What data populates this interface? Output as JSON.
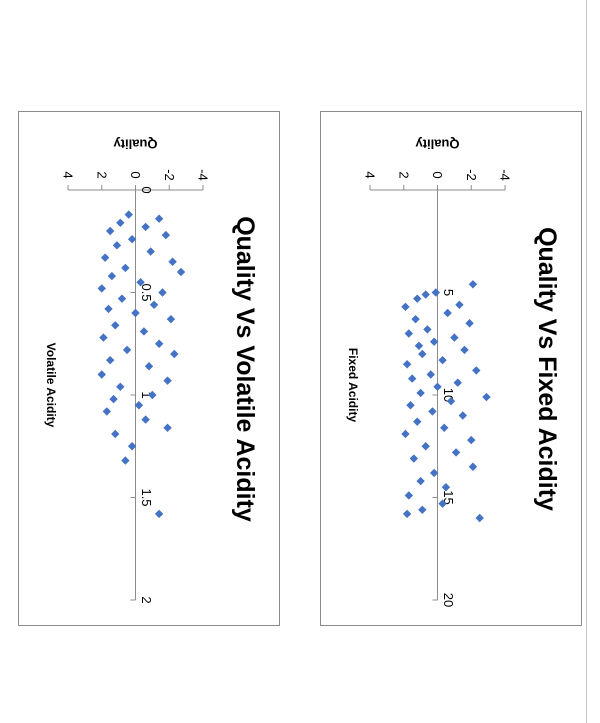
{
  "colors": {
    "marker": "#4472C4",
    "axis": "#8c8c8c",
    "text": "#000000"
  },
  "chart_data": [
    {
      "type": "scatter",
      "title": "Quality Vs Fixed Acidity",
      "xlabel": "Fixed Acidity",
      "ylabel": "Quality",
      "xlim": [
        0,
        20
      ],
      "ylim": [
        -4,
        4
      ],
      "xticks": [
        "5",
        "10",
        "15",
        "20"
      ],
      "yticks": [
        "-4",
        "-2",
        "0",
        "2",
        "4"
      ],
      "orientation": "rotated 90° clockwise",
      "grid": false,
      "legend": "none",
      "points": [
        {
          "x": 4.6,
          "y": -2.1
        },
        {
          "x": 5.0,
          "y": 0.1
        },
        {
          "x": 5.1,
          "y": 0.7
        },
        {
          "x": 5.3,
          "y": 1.2
        },
        {
          "x": 5.6,
          "y": -1.3
        },
        {
          "x": 5.7,
          "y": 1.9
        },
        {
          "x": 6.0,
          "y": -0.6
        },
        {
          "x": 6.3,
          "y": 1.3
        },
        {
          "x": 6.5,
          "y": -1.9
        },
        {
          "x": 6.8,
          "y": 0.6
        },
        {
          "x": 7.0,
          "y": 1.7
        },
        {
          "x": 7.2,
          "y": -1.0
        },
        {
          "x": 7.4,
          "y": 0.2
        },
        {
          "x": 7.6,
          "y": 1.1
        },
        {
          "x": 7.8,
          "y": -1.6
        },
        {
          "x": 8.0,
          "y": 0.9
        },
        {
          "x": 8.3,
          "y": -0.3
        },
        {
          "x": 8.5,
          "y": 1.8
        },
        {
          "x": 8.8,
          "y": -2.3
        },
        {
          "x": 9.0,
          "y": 0.4
        },
        {
          "x": 9.2,
          "y": 1.5
        },
        {
          "x": 9.4,
          "y": -1.2
        },
        {
          "x": 9.6,
          "y": 0.0
        },
        {
          "x": 9.9,
          "y": 1.0
        },
        {
          "x": 10.1,
          "y": -2.9
        },
        {
          "x": 10.3,
          "y": -0.8
        },
        {
          "x": 10.5,
          "y": 1.6
        },
        {
          "x": 10.8,
          "y": 0.3
        },
        {
          "x": 11.0,
          "y": -1.5
        },
        {
          "x": 11.3,
          "y": 1.2
        },
        {
          "x": 11.6,
          "y": -0.4
        },
        {
          "x": 11.9,
          "y": 1.9
        },
        {
          "x": 12.2,
          "y": -2.0
        },
        {
          "x": 12.5,
          "y": 0.7
        },
        {
          "x": 12.8,
          "y": -1.1
        },
        {
          "x": 13.1,
          "y": 1.4
        },
        {
          "x": 13.5,
          "y": -2.1
        },
        {
          "x": 13.8,
          "y": 0.2
        },
        {
          "x": 14.2,
          "y": 1.0
        },
        {
          "x": 14.5,
          "y": -0.5
        },
        {
          "x": 14.9,
          "y": 1.7
        },
        {
          "x": 15.3,
          "y": -0.3
        },
        {
          "x": 15.6,
          "y": 0.9
        },
        {
          "x": 15.8,
          "y": 1.8
        },
        {
          "x": 16.0,
          "y": -2.5
        }
      ]
    },
    {
      "type": "scatter",
      "title": "Quality Vs Volatile Acidity",
      "xlabel": "Volatile Acidity",
      "ylabel": "Quality",
      "xlim": [
        0,
        2
      ],
      "ylim": [
        -4,
        4
      ],
      "xticks": [
        "0",
        "0.5",
        "1",
        "1.5",
        "2"
      ],
      "yticks": [
        "-4",
        "-2",
        "0",
        "2",
        "4"
      ],
      "orientation": "rotated 90° clockwise",
      "grid": false,
      "legend": "none",
      "points": [
        {
          "x": 0.12,
          "y": 0.4
        },
        {
          "x": 0.14,
          "y": -1.4
        },
        {
          "x": 0.16,
          "y": 0.9
        },
        {
          "x": 0.18,
          "y": -0.6
        },
        {
          "x": 0.2,
          "y": 1.5
        },
        {
          "x": 0.22,
          "y": -1.8
        },
        {
          "x": 0.24,
          "y": 0.2
        },
        {
          "x": 0.27,
          "y": 1.1
        },
        {
          "x": 0.3,
          "y": -0.9
        },
        {
          "x": 0.33,
          "y": 1.8
        },
        {
          "x": 0.35,
          "y": -2.2
        },
        {
          "x": 0.38,
          "y": 0.6
        },
        {
          "x": 0.4,
          "y": -2.7
        },
        {
          "x": 0.42,
          "y": 1.4
        },
        {
          "x": 0.45,
          "y": -0.3
        },
        {
          "x": 0.48,
          "y": 2.0
        },
        {
          "x": 0.5,
          "y": -1.6
        },
        {
          "x": 0.53,
          "y": 0.8
        },
        {
          "x": 0.56,
          "y": -1.1
        },
        {
          "x": 0.58,
          "y": 1.6
        },
        {
          "x": 0.6,
          "y": 0.0
        },
        {
          "x": 0.63,
          "y": -2.1
        },
        {
          "x": 0.66,
          "y": 1.2
        },
        {
          "x": 0.69,
          "y": -0.5
        },
        {
          "x": 0.72,
          "y": 1.9
        },
        {
          "x": 0.75,
          "y": -1.4
        },
        {
          "x": 0.78,
          "y": 0.5
        },
        {
          "x": 0.8,
          "y": -2.3
        },
        {
          "x": 0.83,
          "y": 1.5
        },
        {
          "x": 0.86,
          "y": -0.8
        },
        {
          "x": 0.9,
          "y": 2.0
        },
        {
          "x": 0.93,
          "y": -1.9
        },
        {
          "x": 0.96,
          "y": 0.9
        },
        {
          "x": 1.0,
          "y": -1.0
        },
        {
          "x": 1.02,
          "y": 1.3
        },
        {
          "x": 1.05,
          "y": -0.2
        },
        {
          "x": 1.08,
          "y": 1.7
        },
        {
          "x": 1.12,
          "y": -0.6
        },
        {
          "x": 1.16,
          "y": -1.9
        },
        {
          "x": 1.19,
          "y": 1.2
        },
        {
          "x": 1.25,
          "y": 0.2
        },
        {
          "x": 1.32,
          "y": 0.6
        },
        {
          "x": 1.58,
          "y": -1.4
        }
      ]
    }
  ]
}
